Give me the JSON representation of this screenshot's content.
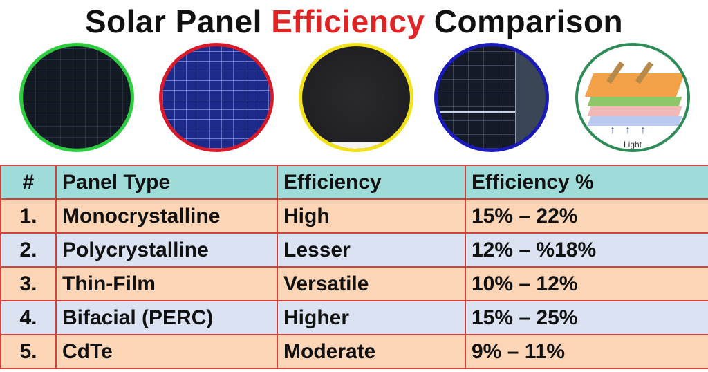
{
  "title": {
    "before": "Solar Panel",
    "accent": "Efficiency",
    "after": "Comparison",
    "accent_color": "#e02424"
  },
  "images": [
    {
      "name": "monocrystalline-panel-image",
      "border_color": "#2ecc40"
    },
    {
      "name": "polycrystalline-panel-image",
      "border_color": "#d81b2a"
    },
    {
      "name": "thin-film-panel-image",
      "border_color": "#f2e21a"
    },
    {
      "name": "bifacial-panel-image",
      "border_color": "#1a1ab8"
    },
    {
      "name": "cdte-layer-diagram-image",
      "border_color": "#2e8b57",
      "label": "Light"
    }
  ],
  "table": {
    "headers": {
      "num": "#",
      "type": "Panel Type",
      "efficiency": "Efficiency",
      "percent": "Efficiency %"
    },
    "rows": [
      {
        "num": "1.",
        "type": "Monocrystalline",
        "efficiency": "High",
        "percent": "15% – 22%"
      },
      {
        "num": "2.",
        "type": "Polycrystalline",
        "efficiency": "Lesser",
        "percent": "12% – %18%"
      },
      {
        "num": "3.",
        "type": "Thin-Film",
        "efficiency": "Versatile",
        "percent": "10% – 12%"
      },
      {
        "num": "4.",
        "type": "Bifacial (PERC)",
        "efficiency": "Higher",
        "percent": "15% – 25%"
      },
      {
        "num": "5.",
        "type": "CdTe",
        "efficiency": "Moderate",
        "percent": "9% – 11%"
      }
    ],
    "header_color": "#9fdcd9",
    "row_colors": [
      "#fbd5b5",
      "#dbe3f2"
    ],
    "border_color": "#d0423c"
  }
}
